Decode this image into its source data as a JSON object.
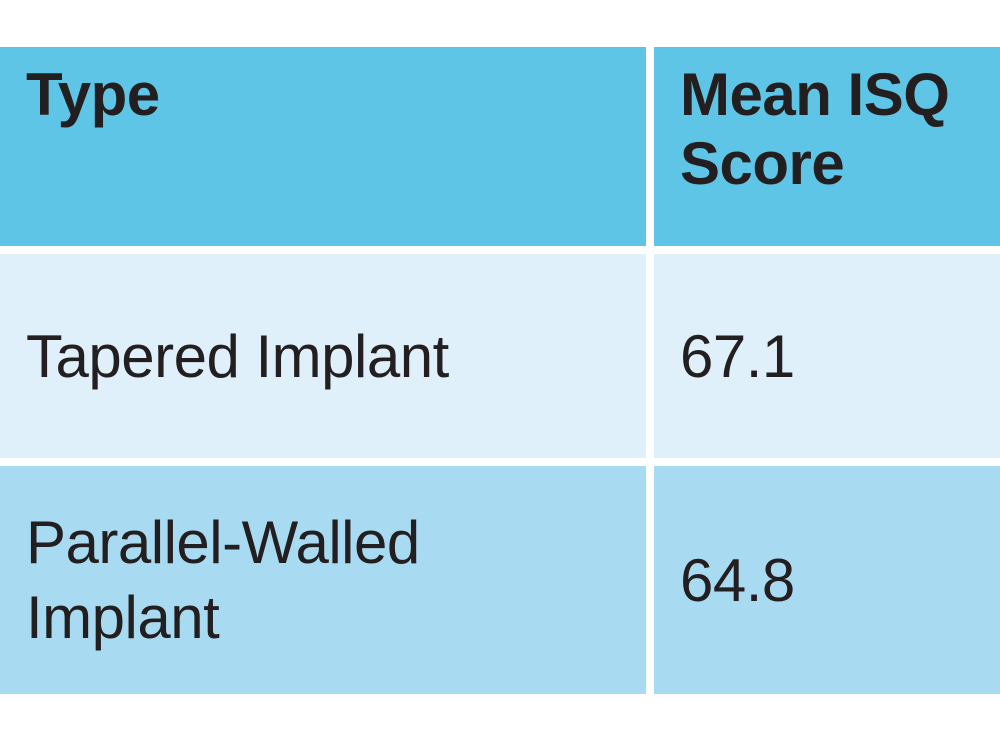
{
  "colors": {
    "page_bg": "#ffffff",
    "header_bg": "#5ec5e6",
    "row1_bg": "#dff0fa",
    "row2_bg": "#a8dbf2",
    "text": "#231f20"
  },
  "table": {
    "columns": [
      "Type",
      "Mean ISQ Score"
    ],
    "rows": [
      {
        "type": "Tapered Implant",
        "score": "67.1"
      },
      {
        "type": "Parallel-Walled Implant",
        "score": "64.8"
      }
    ]
  },
  "chart_data": {
    "type": "table",
    "columns": [
      "Type",
      "Mean ISQ Score"
    ],
    "rows": [
      [
        "Tapered Implant",
        67.1
      ],
      [
        "Parallel-Walled Implant",
        64.8
      ]
    ],
    "layout": {
      "header_position": "top",
      "grid": "off",
      "style": "banded-blue-rows-with-white-gutters"
    }
  }
}
